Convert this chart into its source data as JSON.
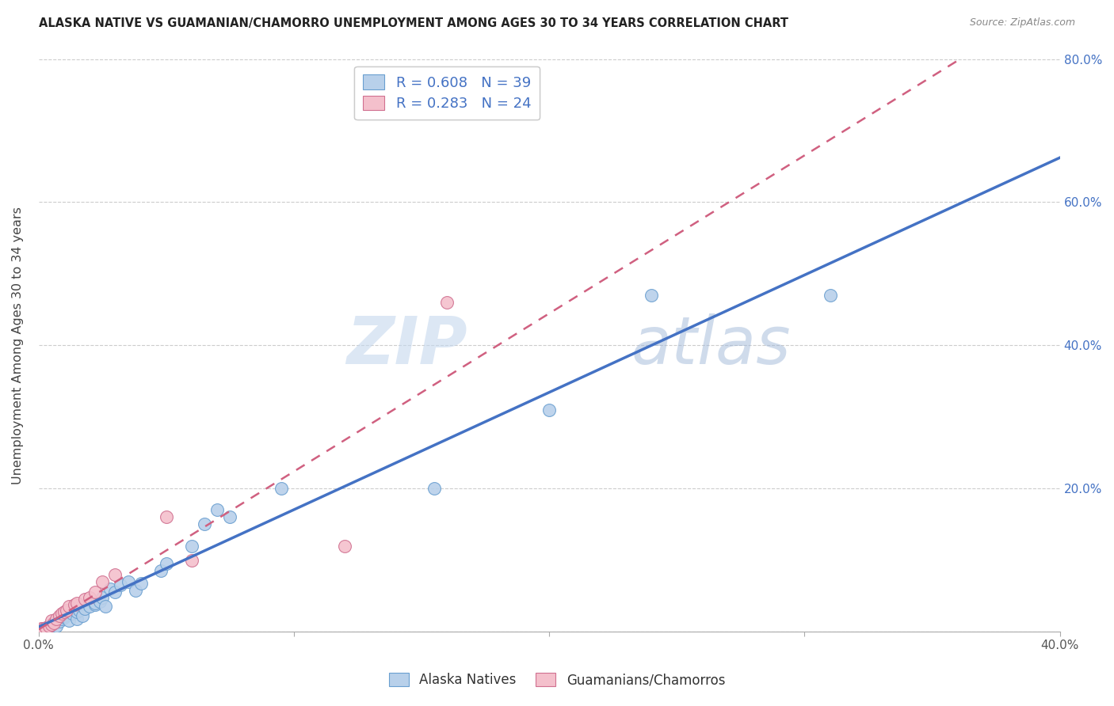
{
  "title": "ALASKA NATIVE VS GUAMANIAN/CHAMORRO UNEMPLOYMENT AMONG AGES 30 TO 34 YEARS CORRELATION CHART",
  "source": "Source: ZipAtlas.com",
  "ylabel": "Unemployment Among Ages 30 to 34 years",
  "xlabel": "",
  "xlim": [
    0.0,
    0.4
  ],
  "ylim": [
    0.0,
    0.8
  ],
  "xticks": [
    0.0,
    0.1,
    0.2,
    0.3,
    0.4
  ],
  "yticks": [
    0.0,
    0.2,
    0.4,
    0.6,
    0.8
  ],
  "xticklabels": [
    "0.0%",
    "",
    "",
    "",
    "40.0%"
  ],
  "yticklabels_left": [
    "",
    "",
    "",
    "",
    ""
  ],
  "yticklabels_right": [
    "",
    "20.0%",
    "40.0%",
    "60.0%",
    "80.0%"
  ],
  "watermark_zip": "ZIP",
  "watermark_atlas": "atlas",
  "alaska_R": 0.608,
  "alaska_N": 39,
  "guam_R": 0.283,
  "guam_N": 24,
  "alaska_color": "#b8d0ea",
  "alaska_edge_color": "#6a9fd0",
  "alaska_line_color": "#4472c4",
  "guam_color": "#f4c0cc",
  "guam_edge_color": "#d07090",
  "guam_line_color": "#d06080",
  "alaska_scatter_x": [
    0.002,
    0.003,
    0.005,
    0.006,
    0.007,
    0.008,
    0.009,
    0.01,
    0.01,
    0.012,
    0.013,
    0.015,
    0.015,
    0.016,
    0.017,
    0.018,
    0.02,
    0.022,
    0.022,
    0.024,
    0.025,
    0.026,
    0.028,
    0.03,
    0.032,
    0.035,
    0.038,
    0.04,
    0.048,
    0.05,
    0.06,
    0.065,
    0.07,
    0.075,
    0.095,
    0.155,
    0.2,
    0.24,
    0.31
  ],
  "alaska_scatter_y": [
    0.005,
    0.006,
    0.01,
    0.012,
    0.008,
    0.014,
    0.018,
    0.02,
    0.022,
    0.015,
    0.025,
    0.018,
    0.028,
    0.03,
    0.022,
    0.032,
    0.035,
    0.038,
    0.04,
    0.042,
    0.048,
    0.035,
    0.06,
    0.055,
    0.065,
    0.07,
    0.058,
    0.068,
    0.085,
    0.095,
    0.12,
    0.15,
    0.17,
    0.16,
    0.2,
    0.2,
    0.31,
    0.47,
    0.47
  ],
  "guam_scatter_x": [
    0.001,
    0.002,
    0.003,
    0.004,
    0.005,
    0.005,
    0.006,
    0.007,
    0.008,
    0.009,
    0.01,
    0.011,
    0.012,
    0.014,
    0.015,
    0.018,
    0.02,
    0.022,
    0.025,
    0.03,
    0.05,
    0.06,
    0.12,
    0.16
  ],
  "guam_scatter_y": [
    0.004,
    0.005,
    0.006,
    0.008,
    0.01,
    0.015,
    0.012,
    0.018,
    0.022,
    0.025,
    0.028,
    0.03,
    0.035,
    0.038,
    0.04,
    0.045,
    0.048,
    0.055,
    0.07,
    0.08,
    0.16,
    0.1,
    0.12,
    0.46
  ],
  "background_color": "#ffffff",
  "grid_color": "#cccccc"
}
